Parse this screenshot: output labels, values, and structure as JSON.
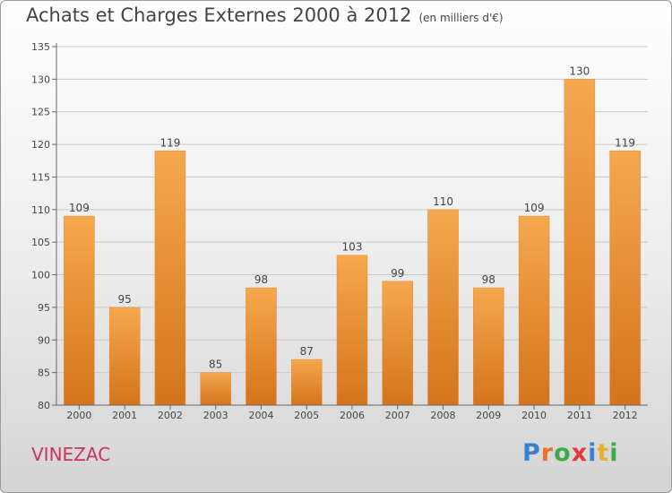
{
  "header": {
    "title": "Achats et Charges Externes 2000 à 2012",
    "unit": "(en milliers d'€)"
  },
  "footer": {
    "place": "VINEZAC",
    "logo": "Proxiti"
  },
  "colors": {
    "bar_light": "#f5a84e",
    "bar_dark": "#d4741c",
    "place": "#c8355e",
    "logo_letters": [
      "#3a7fd0",
      "#e8722a",
      "#3aaa4a",
      "#e23a3a",
      "#3a7fd0",
      "#e8b22a",
      "#3aaa4a"
    ]
  },
  "chart_data": {
    "type": "bar",
    "title": "Achats et Charges Externes 2000 à 2012",
    "subtitle": "(en milliers d'€)",
    "categories": [
      "2000",
      "2001",
      "2002",
      "2003",
      "2004",
      "2005",
      "2006",
      "2007",
      "2008",
      "2009",
      "2010",
      "2011",
      "2012"
    ],
    "values": [
      109,
      95,
      119,
      85,
      98,
      87,
      103,
      99,
      110,
      98,
      109,
      130,
      119
    ],
    "ylim": [
      80,
      135
    ],
    "yticks": [
      80,
      85,
      90,
      95,
      100,
      105,
      110,
      115,
      120,
      125,
      130,
      135
    ],
    "grid": true,
    "data_labels": true
  }
}
